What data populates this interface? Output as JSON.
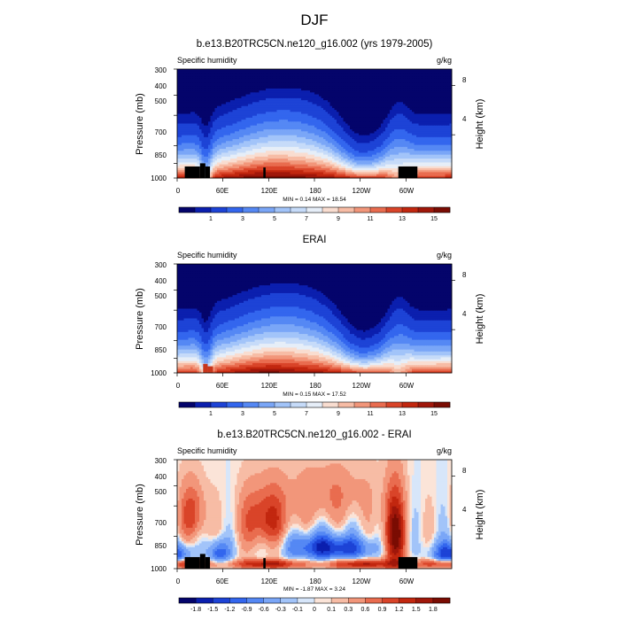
{
  "figure": {
    "title": "DJF",
    "panels": [
      {
        "title": "b.e13.B20TRC5CN.ne120_g16.002 (yrs 1979-2005)",
        "left_label": "Specific humidity",
        "right_label": "g/kg",
        "minmax": "MIN =   0.14  MAX =   18.54",
        "colorbar_labels": [
          "1",
          "3",
          "5",
          "7",
          "9",
          "11",
          "13",
          "15"
        ]
      },
      {
        "title": "ERAI",
        "left_label": "Specific humidity",
        "right_label": "g/kg",
        "minmax": "MIN =   0.15  MAX =   17.52",
        "colorbar_labels": [
          "1",
          "3",
          "5",
          "7",
          "9",
          "11",
          "13",
          "15"
        ]
      },
      {
        "title": "b.e13.B20TRC5CN.ne120_g16.002 - ERAI",
        "left_label": "Specific humidity",
        "right_label": "g/kg",
        "minmax": "MIN =  -1.87  MAX =   3.24",
        "colorbar_labels": [
          "-1.8",
          "-1.5",
          "-1.2",
          "-0.9",
          "-0.6",
          "-0.3",
          "-0.1",
          "0",
          "0.1",
          "0.3",
          "0.6",
          "0.9",
          "1.2",
          "1.5",
          "1.8"
        ]
      }
    ],
    "ylabel_left": "Pressure (mb)",
    "ylabel_right": "Height (km)",
    "yticks_left": [
      "300",
      "400",
      "500",
      "700",
      "850",
      "1000"
    ],
    "yticks_right": [
      "8",
      "4"
    ],
    "xticks": [
      "0",
      "60E",
      "120E",
      "180",
      "120W",
      "60W"
    ]
  },
  "chart_data": [
    {
      "type": "heatmap",
      "title": "b.e13.B20TRC5CN.ne120_g16.002 (yrs 1979-2005)",
      "variable": "Specific humidity",
      "units": "g/kg",
      "x_ticks": [
        0,
        60,
        120,
        180,
        240,
        300
      ],
      "x_range": [
        0,
        360
      ],
      "y_ticks_pressure_mb": [
        300,
        400,
        500,
        700,
        850,
        1000
      ],
      "y_range_pressure_mb": [
        1000,
        300
      ],
      "y_log": true,
      "y_right_ticks_km": [
        8,
        4
      ],
      "min": 0.14,
      "max": 18.54,
      "contour_levels": [
        0.5,
        1,
        2,
        3,
        4,
        5,
        6,
        7,
        8,
        9,
        10,
        11,
        12,
        13,
        14,
        15,
        16
      ],
      "colormap": [
        "#04046b",
        "#0b1fae",
        "#1d43d6",
        "#3366ee",
        "#5588f4",
        "#7aa6f7",
        "#a2c4f9",
        "#c6dbf9",
        "#e6eef8",
        "#f9ddd0",
        "#f7bca5",
        "#f2967a",
        "#e96c4f",
        "#d94429",
        "#c2270f",
        "#a0170a",
        "#7a0c03"
      ]
    },
    {
      "type": "heatmap",
      "title": "ERAI",
      "variable": "Specific humidity",
      "units": "g/kg",
      "x_ticks": [
        0,
        60,
        120,
        180,
        240,
        300
      ],
      "x_range": [
        0,
        360
      ],
      "y_ticks_pressure_mb": [
        300,
        400,
        500,
        700,
        850,
        1000
      ],
      "y_range_pressure_mb": [
        1000,
        300
      ],
      "y_log": true,
      "y_right_ticks_km": [
        8,
        4
      ],
      "min": 0.15,
      "max": 17.52,
      "contour_levels": [
        0.5,
        1,
        2,
        3,
        4,
        5,
        6,
        7,
        8,
        9,
        10,
        11,
        12,
        13,
        14,
        15,
        16
      ],
      "colormap": [
        "#04046b",
        "#0b1fae",
        "#1d43d6",
        "#3366ee",
        "#5588f4",
        "#7aa6f7",
        "#a2c4f9",
        "#c6dbf9",
        "#e6eef8",
        "#f9ddd0",
        "#f7bca5",
        "#f2967a",
        "#e96c4f",
        "#d94429",
        "#c2270f",
        "#a0170a",
        "#7a0c03"
      ]
    },
    {
      "type": "heatmap",
      "title": "b.e13.B20TRC5CN.ne120_g16.002 - ERAI",
      "variable": "Specific humidity",
      "units": "g/kg",
      "x_ticks": [
        0,
        60,
        120,
        180,
        240,
        300
      ],
      "x_range": [
        0,
        360
      ],
      "y_ticks_pressure_mb": [
        300,
        400,
        500,
        700,
        850,
        1000
      ],
      "y_range_pressure_mb": [
        1000,
        300
      ],
      "y_log": true,
      "y_right_ticks_km": [
        8,
        4
      ],
      "min": -1.87,
      "max": 3.24,
      "contour_levels": [
        -1.8,
        -1.5,
        -1.2,
        -0.9,
        -0.6,
        -0.3,
        -0.1,
        0,
        0.1,
        0.3,
        0.6,
        0.9,
        1.2,
        1.5,
        1.8
      ],
      "colormap": [
        "#04046b",
        "#0b1fae",
        "#1d43d6",
        "#3366ee",
        "#5588f4",
        "#7aa6f7",
        "#a2c4f9",
        "#d7e6fa",
        "#fbe4d8",
        "#f7bca5",
        "#f2967a",
        "#e96c4f",
        "#d94429",
        "#c2270f",
        "#a0170a",
        "#7a0c03"
      ]
    }
  ]
}
